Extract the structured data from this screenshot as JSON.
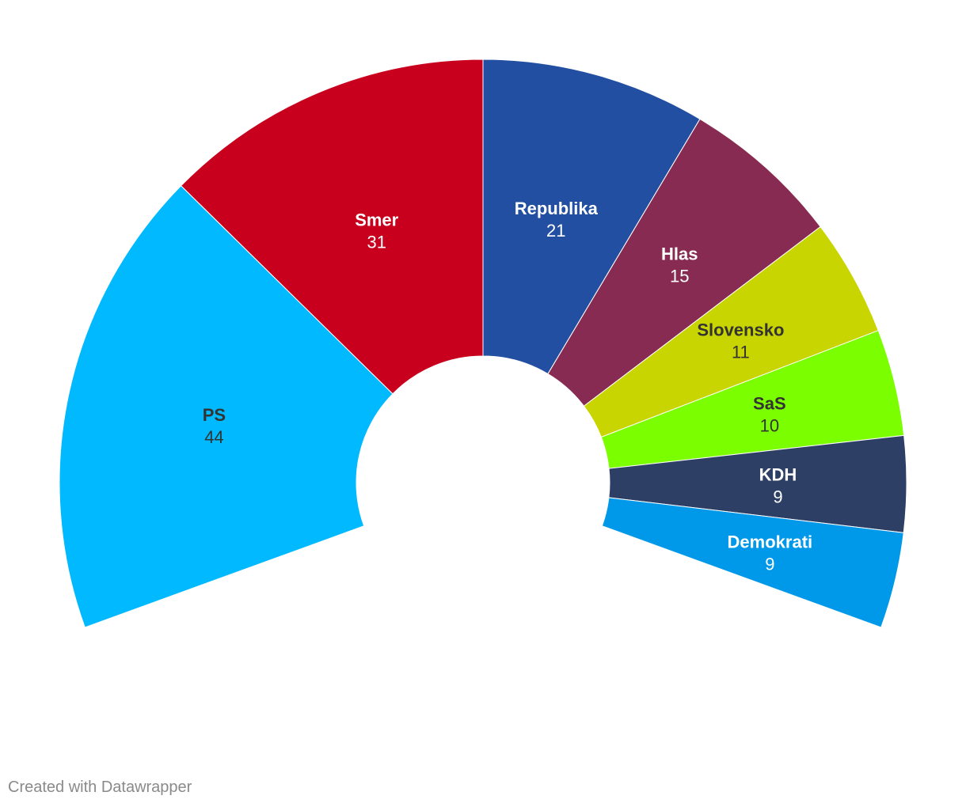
{
  "chart_data": {
    "type": "pie",
    "variant": "parliament-semicircle",
    "total": 150,
    "arc_degrees": 220,
    "series": [
      {
        "name": "PS",
        "value": 44,
        "color": "#00b9ff",
        "label_color": "#333333"
      },
      {
        "name": "Smer",
        "value": 31,
        "color": "#c8001e",
        "label_color": "#ffffff"
      },
      {
        "name": "Republika",
        "value": 21,
        "color": "#224fa1",
        "label_color": "#ffffff"
      },
      {
        "name": "Hlas",
        "value": 15,
        "color": "#882b52",
        "label_color": "#ffffff"
      },
      {
        "name": "Slovensko",
        "value": 11,
        "color": "#c8d500",
        "label_color": "#333333"
      },
      {
        "name": "SaS",
        "value": 10,
        "color": "#7afe00",
        "label_color": "#333333"
      },
      {
        "name": "KDH",
        "value": 9,
        "color": "#2e3f66",
        "label_color": "#ffffff"
      },
      {
        "name": "Demokrati",
        "value": 9,
        "color": "#0098e8",
        "label_color": "#ffffff"
      }
    ]
  },
  "footer": {
    "credit": "Created with Datawrapper"
  }
}
